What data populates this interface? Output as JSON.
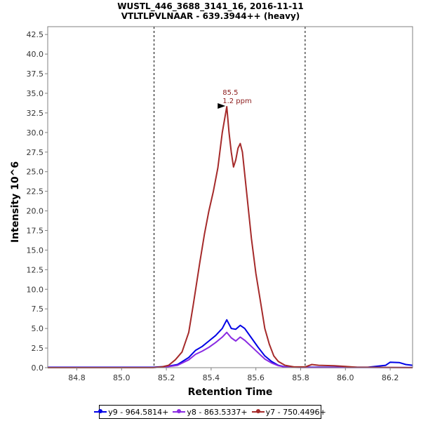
{
  "header": {
    "title_line1": "WUSTL_446_3688_3141_16, 2016-11-11",
    "title_line2": "VTLTLPVLNAAR - 639.3944++ (heavy)"
  },
  "chart_data": {
    "type": "line",
    "title": "WUSTL_446_3688_3141_16, 2016-11-11",
    "subtitle": "VTLTLPVLNAAR - 639.3944++ (heavy)",
    "xlabel": "Retention Time",
    "ylabel": "Intensity 10^6",
    "xlim": [
      84.67,
      86.3
    ],
    "ylim": [
      0,
      43.5
    ],
    "xticks": [
      "84.8",
      "85.0",
      "85.2",
      "85.4",
      "85.6",
      "85.8",
      "86.0",
      "86.2"
    ],
    "yticks": [
      "0.0",
      "2.5",
      "5.0",
      "7.5",
      "10.0",
      "12.5",
      "15.0",
      "17.5",
      "20.0",
      "22.5",
      "25.0",
      "27.5",
      "30.0",
      "32.5",
      "35.0",
      "37.5",
      "40.0",
      "42.5"
    ],
    "boundaries": [
      85.145,
      85.82
    ],
    "annotation": {
      "x": 85.47,
      "y": 33.3,
      "line1": "85.5",
      "line2": "1.2 ppm",
      "color": "#8b1a1a"
    },
    "series": [
      {
        "name": "y9 - 964.5814+",
        "color": "#0000e6",
        "points": [
          [
            84.67,
            0.05
          ],
          [
            85.14,
            0.05
          ],
          [
            85.2,
            0.15
          ],
          [
            85.25,
            0.4
          ],
          [
            85.3,
            1.3
          ],
          [
            85.33,
            2.2
          ],
          [
            85.36,
            2.7
          ],
          [
            85.39,
            3.4
          ],
          [
            85.42,
            4.1
          ],
          [
            85.45,
            5.0
          ],
          [
            85.47,
            6.1
          ],
          [
            85.49,
            5.0
          ],
          [
            85.51,
            4.9
          ],
          [
            85.53,
            5.4
          ],
          [
            85.55,
            5.0
          ],
          [
            85.58,
            3.8
          ],
          [
            85.61,
            2.6
          ],
          [
            85.64,
            1.5
          ],
          [
            85.67,
            0.8
          ],
          [
            85.7,
            0.3
          ],
          [
            85.73,
            0.1
          ],
          [
            85.8,
            0.05
          ],
          [
            86.1,
            0.05
          ],
          [
            86.18,
            0.3
          ],
          [
            86.2,
            0.7
          ],
          [
            86.24,
            0.65
          ],
          [
            86.27,
            0.4
          ],
          [
            86.3,
            0.3
          ]
        ]
      },
      {
        "name": "y8 - 863.5337+",
        "color": "#8a2be2",
        "points": [
          [
            84.67,
            0.03
          ],
          [
            85.14,
            0.03
          ],
          [
            85.2,
            0.1
          ],
          [
            85.25,
            0.3
          ],
          [
            85.3,
            1.0
          ],
          [
            85.33,
            1.7
          ],
          [
            85.36,
            2.1
          ],
          [
            85.39,
            2.6
          ],
          [
            85.42,
            3.2
          ],
          [
            85.45,
            3.9
          ],
          [
            85.47,
            4.5
          ],
          [
            85.49,
            3.8
          ],
          [
            85.51,
            3.4
          ],
          [
            85.53,
            3.9
          ],
          [
            85.55,
            3.5
          ],
          [
            85.58,
            2.7
          ],
          [
            85.61,
            1.9
          ],
          [
            85.64,
            1.1
          ],
          [
            85.67,
            0.6
          ],
          [
            85.7,
            0.25
          ],
          [
            85.73,
            0.08
          ],
          [
            85.8,
            0.03
          ],
          [
            86.3,
            0.03
          ]
        ]
      },
      {
        "name": "y7 - 750.4496+",
        "color": "#a52a2a",
        "points": [
          [
            84.67,
            0.0
          ],
          [
            85.14,
            0.0
          ],
          [
            85.18,
            0.1
          ],
          [
            85.21,
            0.3
          ],
          [
            85.24,
            1.0
          ],
          [
            85.27,
            2.0
          ],
          [
            85.3,
            4.5
          ],
          [
            85.32,
            8.0
          ],
          [
            85.35,
            13.5
          ],
          [
            85.37,
            17.0
          ],
          [
            85.39,
            20.0
          ],
          [
            85.41,
            22.5
          ],
          [
            85.43,
            25.5
          ],
          [
            85.45,
            30.0
          ],
          [
            85.47,
            33.3
          ],
          [
            85.48,
            30.0
          ],
          [
            85.49,
            27.5
          ],
          [
            85.5,
            25.6
          ],
          [
            85.51,
            26.5
          ],
          [
            85.52,
            28.0
          ],
          [
            85.53,
            28.6
          ],
          [
            85.54,
            27.5
          ],
          [
            85.56,
            22.0
          ],
          [
            85.58,
            16.5
          ],
          [
            85.6,
            12.0
          ],
          [
            85.62,
            8.5
          ],
          [
            85.64,
            5.0
          ],
          [
            85.66,
            3.0
          ],
          [
            85.68,
            1.5
          ],
          [
            85.7,
            0.8
          ],
          [
            85.73,
            0.3
          ],
          [
            85.77,
            0.1
          ],
          [
            85.82,
            0.1
          ],
          [
            85.85,
            0.4
          ],
          [
            85.88,
            0.3
          ],
          [
            85.95,
            0.25
          ],
          [
            86.0,
            0.15
          ],
          [
            86.05,
            0.05
          ],
          [
            86.3,
            0.0
          ]
        ]
      }
    ]
  },
  "legend": {
    "items": [
      {
        "label": "y9 - 964.5814+",
        "color": "#0000e6"
      },
      {
        "label": "y8 - 863.5337+",
        "color": "#8a2be2"
      },
      {
        "label": "y7 - 750.4496+",
        "color": "#a52a2a"
      }
    ]
  }
}
